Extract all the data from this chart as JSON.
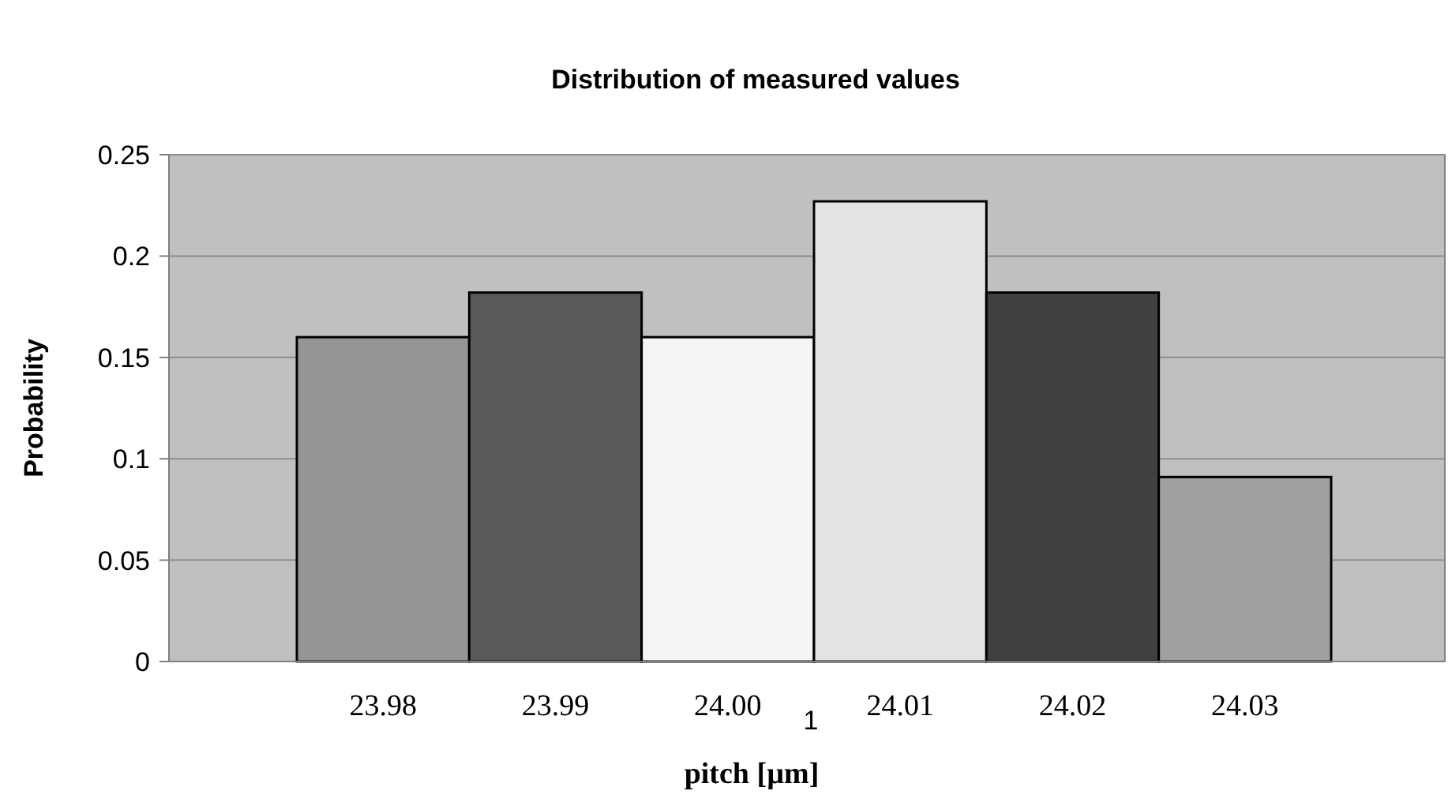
{
  "chart_data": {
    "type": "bar",
    "title": "Distribution of measured values",
    "xlabel": "pitch [µm]",
    "ylabel": "Probability",
    "categories": [
      "23.98",
      "23.99",
      "24.00",
      "24.01",
      "24.02",
      "24.03"
    ],
    "values": [
      0.16,
      0.182,
      0.16,
      0.227,
      0.182,
      0.091
    ],
    "colors": [
      "#959595",
      "#595959",
      "#f5f5f5",
      "#e3e3e3",
      "#404040",
      "#a0a0a0"
    ],
    "ylim": [
      0,
      0.25
    ],
    "yticks": [
      0,
      0.05,
      0.1,
      0.15,
      0.2,
      0.25
    ],
    "grid": "y",
    "annotations": [
      "1"
    ]
  }
}
